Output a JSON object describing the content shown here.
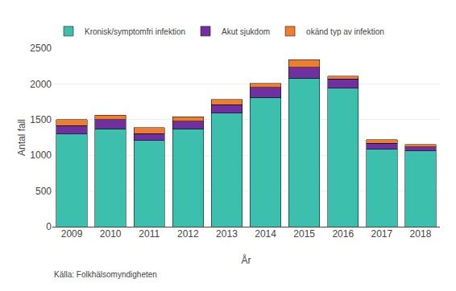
{
  "chart_data": {
    "type": "bar",
    "stacked": true,
    "categories": [
      "2009",
      "2010",
      "2011",
      "2012",
      "2013",
      "2014",
      "2015",
      "2016",
      "2017",
      "2018"
    ],
    "series": [
      {
        "name": "Kronisk/symptomfri infektion",
        "color": "#3dbfad",
        "values": [
          1300,
          1370,
          1210,
          1370,
          1590,
          1810,
          2080,
          1940,
          1085,
          1060
        ]
      },
      {
        "name": "Akut sjukdom",
        "color": "#7030a0",
        "values": [
          115,
          130,
          95,
          110,
          120,
          140,
          155,
          130,
          85,
          55
        ]
      },
      {
        "name": "okänd typ av infektion",
        "color": "#ed7d31",
        "values": [
          85,
          60,
          85,
          60,
          70,
          60,
          105,
          40,
          50,
          35
        ]
      }
    ],
    "xlabel": "År",
    "ylabel": "Antal fall",
    "annotations": [
      "Källa: Folkhälsomyndigheten"
    ],
    "ylim": [
      0,
      2500
    ],
    "yticks": [
      0,
      500,
      1000,
      1500,
      2000,
      2500
    ],
    "grid": true,
    "legend": "top"
  }
}
